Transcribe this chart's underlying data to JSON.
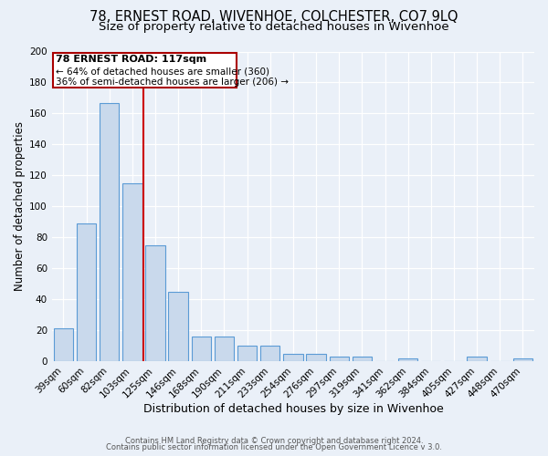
{
  "title1": "78, ERNEST ROAD, WIVENHOE, COLCHESTER, CO7 9LQ",
  "title2": "Size of property relative to detached houses in Wivenhoe",
  "xlabel": "Distribution of detached houses by size in Wivenhoe",
  "ylabel": "Number of detached properties",
  "categories": [
    "39sqm",
    "60sqm",
    "82sqm",
    "103sqm",
    "125sqm",
    "146sqm",
    "168sqm",
    "190sqm",
    "211sqm",
    "233sqm",
    "254sqm",
    "276sqm",
    "297sqm",
    "319sqm",
    "341sqm",
    "362sqm",
    "384sqm",
    "405sqm",
    "427sqm",
    "448sqm",
    "470sqm"
  ],
  "values": [
    21,
    89,
    167,
    115,
    75,
    45,
    16,
    16,
    10,
    10,
    5,
    5,
    3,
    3,
    0,
    2,
    0,
    0,
    3,
    0,
    2
  ],
  "bar_color": "#c9d9ec",
  "bar_edge_color": "#5b9bd5",
  "bg_color": "#eaf0f8",
  "annotation_line1": "78 ERNEST ROAD: 117sqm",
  "annotation_line2": "← 64% of detached houses are smaller (360)",
  "annotation_line3": "36% of semi-detached houses are larger (206) →",
  "red_line_x": 3.5,
  "ylim": [
    0,
    200
  ],
  "yticks": [
    0,
    20,
    40,
    60,
    80,
    100,
    120,
    140,
    160,
    180,
    200
  ],
  "footer1": "Contains HM Land Registry data © Crown copyright and database right 2024.",
  "footer2": "Contains public sector information licensed under the Open Government Licence v 3.0.",
  "title1_fontsize": 10.5,
  "title2_fontsize": 9.5,
  "xlabel_fontsize": 9,
  "ylabel_fontsize": 8.5,
  "tick_fontsize": 7.5,
  "ann_fontsize1": 8.0,
  "ann_fontsize2": 7.5,
  "footer_fontsize": 6.0
}
